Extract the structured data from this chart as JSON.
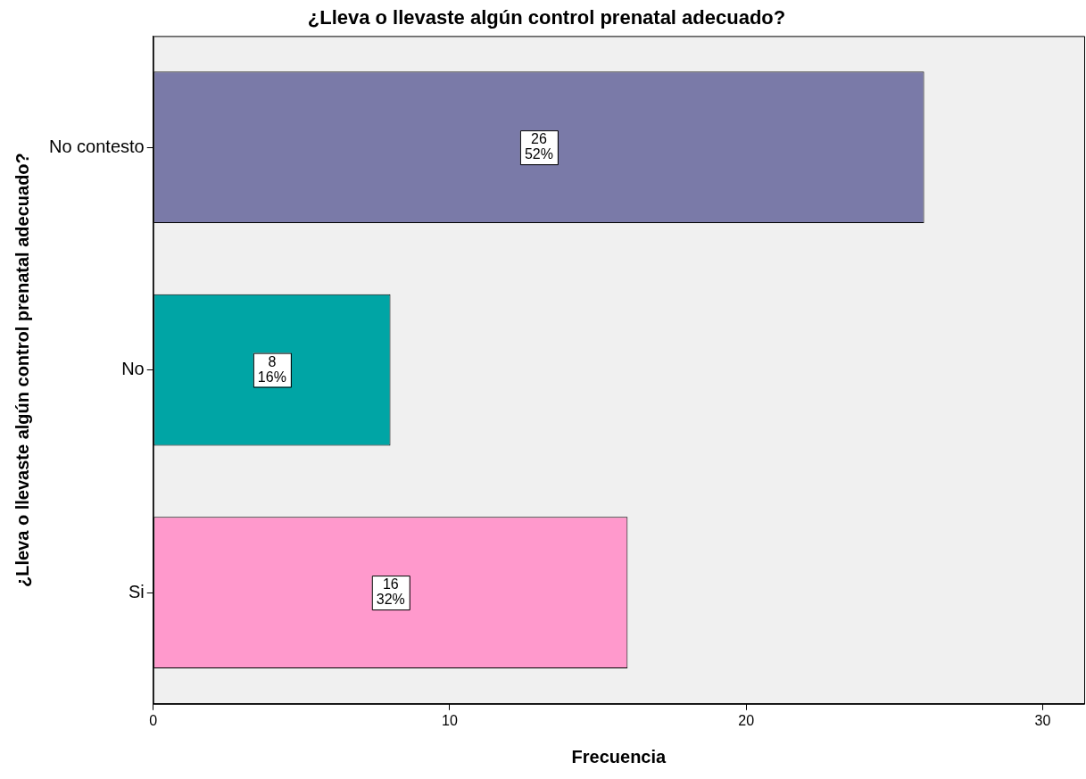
{
  "chart_data": {
    "type": "bar",
    "orientation": "horizontal",
    "title": "¿Lleva o llevaste algún control prenatal adecuado?",
    "xlabel": "Frecuencia",
    "ylabel": "¿Lleva o llevaste algún control prenatal adecuado?",
    "categories": [
      "No contesto",
      "No",
      "Si"
    ],
    "values": [
      26,
      8,
      16
    ],
    "colors": [
      "#7a7aa8",
      "#00a5a5",
      "#ff99cc"
    ],
    "value_labels": [
      "26\n52%",
      "8\n16%",
      "16\n32%"
    ],
    "xlim": [
      0,
      31.4
    ],
    "xticks": [
      0,
      10,
      20,
      30
    ],
    "grid": false,
    "legend": false
  }
}
